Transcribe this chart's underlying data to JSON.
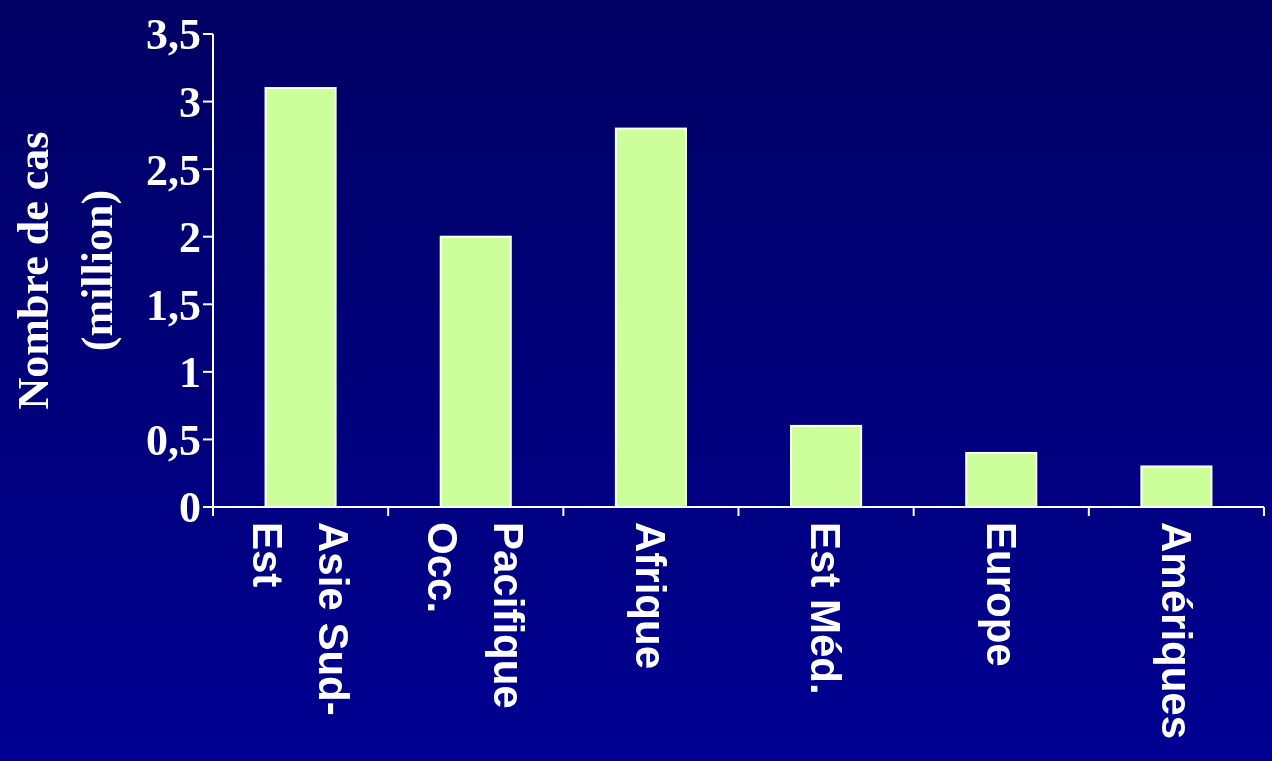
{
  "chart_data": {
    "type": "bar",
    "ylabel": "Nombre de cas (million)",
    "categories": [
      "Asie Sud-Est",
      "Pacifique Occ.",
      "Afrique",
      "Est Méd.",
      "Europe",
      "Amériques"
    ],
    "values": [
      3.1,
      2.0,
      2.8,
      0.6,
      0.4,
      0.3
    ],
    "color": "#ccff99",
    "ylim": [
      0,
      3.5
    ],
    "yticks": [
      0,
      {
        "value": 0.5,
        "label": "0,5"
      },
      1,
      {
        "value": 1.5,
        "label": "1,5"
      },
      2,
      {
        "value": 2.5,
        "label": "2,5"
      },
      3,
      {
        "value": 3.5,
        "label": "3,5"
      }
    ]
  }
}
